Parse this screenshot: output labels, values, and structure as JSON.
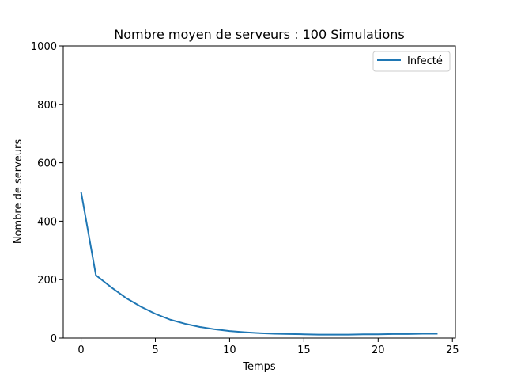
{
  "chart_data": {
    "type": "line",
    "title": "Nombre moyen de serveurs : 100 Simulations",
    "xlabel": "Temps",
    "ylabel": "Nombre de serveurs",
    "xlim": [
      -1.2,
      25.2
    ],
    "ylim": [
      0,
      1000
    ],
    "xticks": [
      0,
      5,
      10,
      15,
      20,
      25
    ],
    "yticks": [
      0,
      200,
      400,
      600,
      800,
      1000
    ],
    "grid": false,
    "legend_position": "top-right",
    "series": [
      {
        "name": "Infecté",
        "color": "#1f77b4",
        "x": [
          0,
          1,
          2,
          3,
          4,
          5,
          6,
          7,
          8,
          9,
          10,
          11,
          12,
          13,
          14,
          15,
          16,
          17,
          18,
          19,
          20,
          21,
          22,
          23,
          24
        ],
        "y": [
          500,
          215,
          175,
          138,
          108,
          83,
          63,
          49,
          38,
          30,
          24,
          20,
          17,
          15,
          14,
          13,
          12,
          12,
          12,
          13,
          13,
          14,
          14,
          15,
          15
        ]
      }
    ]
  }
}
